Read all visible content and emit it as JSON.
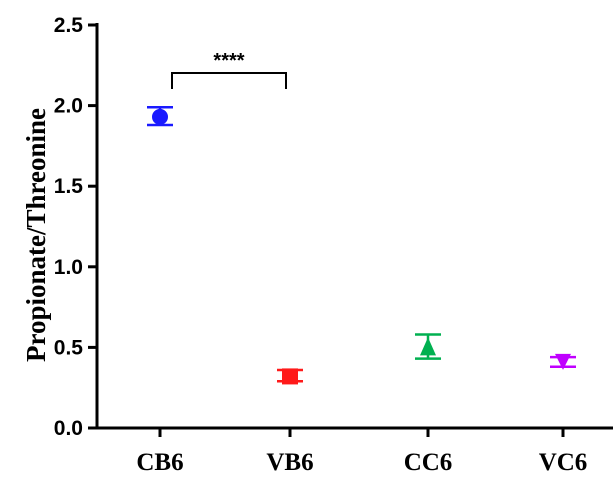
{
  "chart_data": {
    "type": "scatter",
    "ylabel": "Propionate/Threonine",
    "ylim": [
      0,
      2.5
    ],
    "yticks": [
      0.0,
      0.5,
      1.0,
      1.5,
      2.0,
      2.5
    ],
    "ytick_labels": [
      "0.0",
      "0.5",
      "1.0",
      "1.5",
      "2.0",
      "2.5"
    ],
    "categories": [
      "CB6",
      "VB6",
      "CC6",
      "VC6"
    ],
    "points": [
      {
        "category": "CB6",
        "value": 1.93,
        "err_low": 1.88,
        "err_high": 1.99,
        "color": "#1a1aff",
        "marker": "circle"
      },
      {
        "category": "VB6",
        "value": 0.32,
        "err_low": 0.29,
        "err_high": 0.36,
        "color": "#ff1a1a",
        "marker": "square"
      },
      {
        "category": "CC6",
        "value": 0.5,
        "err_low": 0.43,
        "err_high": 0.58,
        "color": "#00b050",
        "marker": "triangle-up"
      },
      {
        "category": "VC6",
        "value": 0.41,
        "err_low": 0.38,
        "err_high": 0.44,
        "color": "#c000ff",
        "marker": "triangle-down"
      }
    ],
    "significance": {
      "from": "CB6",
      "to": "VB6",
      "label": "****"
    },
    "grid": false,
    "legend": "none"
  }
}
